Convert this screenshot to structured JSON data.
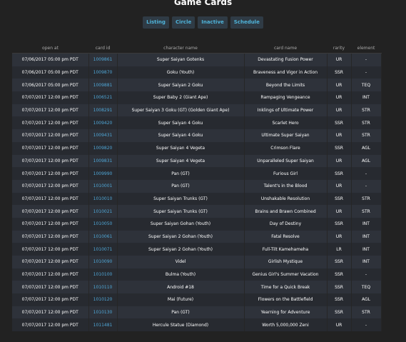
{
  "page": {
    "title": "Game Cards"
  },
  "nav": [
    {
      "label": "Listing"
    },
    {
      "label": "Circle"
    },
    {
      "label": "Inactive"
    },
    {
      "label": "Schedule"
    }
  ],
  "table": {
    "headers": [
      "open at",
      "card id",
      "character name",
      "card name",
      "rarity",
      "element"
    ],
    "rows": [
      [
        "07/06/2017 05:00 pm PDT",
        "1009861",
        "Super Saiyan Gotenks",
        "Devastating Fusion Power",
        "UR",
        "-"
      ],
      [
        "07/06/2017 05:00 pm PDT",
        "1009870",
        "Goku (Youth)",
        "Braveness and Vigor in Action",
        "SSR",
        "-"
      ],
      [
        "07/06/2017 05:00 pm PDT",
        "1009881",
        "Super Saiyan 2 Goku",
        "Beyond the Limits",
        "UR",
        "TEQ"
      ],
      [
        "07/07/2017 12:00 pm PDT",
        "1006521",
        "Super Baby 2 (Giant Ape)",
        "Rampaging Vengeance",
        "UR",
        "INT"
      ],
      [
        "07/07/2017 12:00 pm PDT",
        "1008291",
        "Super Saiyan 3 Goku (GT) (Golden Giant Ape)",
        "Inklings of Ultimate Power",
        "UR",
        "STR"
      ],
      [
        "07/07/2017 12:00 pm PDT",
        "1009420",
        "Super Saiyan 4 Goku",
        "Scarlet Hero",
        "SSR",
        "STR"
      ],
      [
        "07/07/2017 12:00 pm PDT",
        "1009431",
        "Super Saiyan 4 Goku",
        "Ultimate Super Saiyan",
        "UR",
        "STR"
      ],
      [
        "07/07/2017 12:00 pm PDT",
        "1009820",
        "Super Saiyan 4 Vegeta",
        "Crimson Flare",
        "SSR",
        "AGL"
      ],
      [
        "07/07/2017 12:00 pm PDT",
        "1009831",
        "Super Saiyan 4 Vegeta",
        "Unparalleled Super Saiyan",
        "UR",
        "AGL"
      ],
      [
        "07/07/2017 12:00 pm PDT",
        "1009990",
        "Pan (GT)",
        "Furious Girl",
        "SSR",
        "-"
      ],
      [
        "07/07/2017 12:00 pm PDT",
        "1010001",
        "Pan (GT)",
        "Talent's in the Blood",
        "UR",
        "-"
      ],
      [
        "07/07/2017 12:00 pm PDT",
        "1010010",
        "Super Saiyan Trunks (GT)",
        "Unshakable Resolution",
        "SSR",
        "STR"
      ],
      [
        "07/07/2017 12:00 pm PDT",
        "1010021",
        "Super Saiyan Trunks (GT)",
        "Brains and Brawn Combined",
        "UR",
        "STR"
      ],
      [
        "07/07/2017 12:00 pm PDT",
        "1010050",
        "Super Saiyan Gohan (Youth)",
        "Day of Destiny",
        "SSR",
        "INT"
      ],
      [
        "07/07/2017 12:00 pm PDT",
        "1010061",
        "Super Saiyan 2 Gohan (Youth)",
        "Fatal Resolve",
        "UR",
        "INT"
      ],
      [
        "07/07/2017 12:00 pm PDT",
        "1010071",
        "Super Saiyan 2 Gohan (Youth)",
        "Full-Tilt Kamehameha",
        "LR",
        "INT"
      ],
      [
        "07/07/2017 12:00 pm PDT",
        "1010090",
        "Videl",
        "Girlish Mystique",
        "SSR",
        "INT"
      ],
      [
        "07/07/2017 12:00 pm PDT",
        "1010100",
        "Bulma (Youth)",
        "Genius Girl's Summer Vacation",
        "SSR",
        "-"
      ],
      [
        "07/07/2017 12:00 pm PDT",
        "1010110",
        "Android #18",
        "Time for a Quick Break",
        "SSR",
        "TEQ"
      ],
      [
        "07/07/2017 12:00 pm PDT",
        "1010120",
        "Mai (Future)",
        "Flowers on the Battlefield",
        "SSR",
        "AGL"
      ],
      [
        "07/07/2017 12:00 pm PDT",
        "1010130",
        "Pan (GT)",
        "Yearning for Adventure",
        "SSR",
        "STR"
      ],
      [
        "07/07/2017 12:00 pm PDT",
        "1011481",
        "Hercule Statue (Diamond)",
        "Worth 5,000,000 Zeni",
        "UR",
        "-"
      ]
    ]
  }
}
